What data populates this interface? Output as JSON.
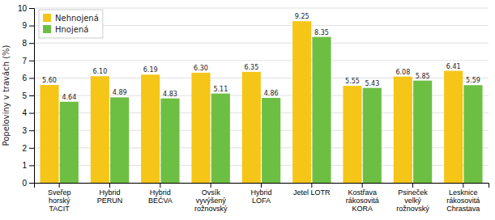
{
  "chart_data": {
    "type": "bar",
    "categories": [
      "Sveřep\nhorský\nTACIT",
      "Hybrid\nPERUN",
      "Hybrid\nBEČVA",
      "Ovsík\nvyvýšený\nrožnovský",
      "Hybrid\nLOFA",
      "Jetel LOTR",
      "Kostřava\nrákosovitá\nKORA",
      "Psineček\nvelký\nrožnovský",
      "Lesknice\nrákosovitá\nChrastava"
    ],
    "series": [
      {
        "name": "Nehnojená",
        "color": "#F5C518",
        "values": [
          5.6,
          6.1,
          6.19,
          6.3,
          6.35,
          9.25,
          5.55,
          6.08,
          6.41
        ],
        "value_labels": [
          "5.60",
          "6.10",
          "6.19",
          "6.30",
          "6.35",
          "9.25",
          "5.55",
          "6.08",
          "6.41"
        ]
      },
      {
        "name": "Hnojená",
        "color": "#6DBF44",
        "values": [
          4.64,
          4.89,
          4.83,
          5.11,
          4.86,
          8.35,
          5.43,
          5.85,
          5.59
        ],
        "value_labels": [
          "4.64",
          "4.89",
          "4.83",
          "5.11",
          "4.86",
          "8.35",
          "5.43",
          "5.85",
          "5.59"
        ]
      }
    ],
    "ylabel": "Popeloviny v travách (%)",
    "ylim": [
      0,
      10
    ],
    "yticks": [
      0,
      1,
      2,
      3,
      4,
      5,
      6,
      7,
      8,
      9,
      10
    ],
    "grid": true,
    "legend": "upper left",
    "data_labels": true
  }
}
